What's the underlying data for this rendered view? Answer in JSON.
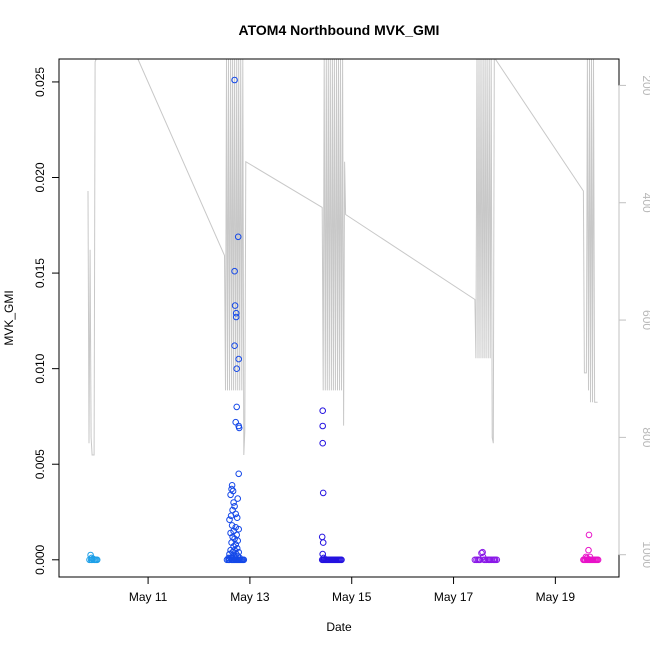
{
  "chart_data": {
    "type": "scatter",
    "title": "ATOM4 Northbound MVK_GMI",
    "xlabel": "Date",
    "ylabel": "MVK_GMI",
    "x_ticks": [
      {
        "label": "May 11",
        "day": 11
      },
      {
        "label": "May 13",
        "day": 13
      },
      {
        "label": "May 15",
        "day": 15
      },
      {
        "label": "May 17",
        "day": 17
      },
      {
        "label": "May 19",
        "day": 19
      }
    ],
    "xlim_days": [
      9.25,
      20.25
    ],
    "ylim": [
      -0.0009,
      0.0262
    ],
    "y_ticks": [
      {
        "label": "0.000",
        "v": 0.0
      },
      {
        "label": "0.005",
        "v": 0.005
      },
      {
        "label": "0.010",
        "v": 0.01
      },
      {
        "label": "0.015",
        "v": 0.015
      },
      {
        "label": "0.020",
        "v": 0.02
      },
      {
        "label": "0.025",
        "v": 0.025
      }
    ],
    "right_axis": {
      "color": "#c0c0c0",
      "reversed": true,
      "ylim": [
        1038,
        155
      ],
      "ticks": [
        {
          "label": "200",
          "v": 200
        },
        {
          "label": "400",
          "v": 400
        },
        {
          "label": "600",
          "v": 600
        },
        {
          "label": "800",
          "v": 800
        },
        {
          "label": "1000",
          "v": 1000
        }
      ]
    },
    "series": [
      {
        "color": "#1ea0e8",
        "points": [
          [
            9.85,
            0.0
          ],
          [
            9.87,
            0.00025
          ],
          [
            9.89,
            0.0001
          ],
          [
            9.9,
            0.0
          ],
          [
            9.92,
            5e-05
          ],
          [
            9.94,
            0.0
          ],
          [
            9.96,
            0.0
          ],
          [
            9.98,
            0.0
          ],
          [
            10.0,
            0.0
          ],
          [
            9.88,
            0.0
          ]
        ]
      },
      {
        "color": "#1448e8",
        "points": [
          [
            12.55,
            0.0
          ],
          [
            12.58,
            0.0
          ],
          [
            12.6,
            0.0
          ],
          [
            12.62,
            0.0001
          ],
          [
            12.64,
            0.0
          ],
          [
            12.66,
            0.0
          ],
          [
            12.68,
            0.0
          ],
          [
            12.7,
            0.0
          ],
          [
            12.72,
            0.0
          ],
          [
            12.74,
            0.0
          ],
          [
            12.76,
            0.0
          ],
          [
            12.78,
            0.0
          ],
          [
            12.8,
            0.0
          ],
          [
            12.82,
            0.0
          ],
          [
            12.84,
            0.0
          ],
          [
            12.86,
            0.0
          ],
          [
            12.88,
            0.0
          ],
          [
            12.7,
            0.0251
          ],
          [
            12.77,
            0.0169
          ],
          [
            12.7,
            0.0151
          ],
          [
            12.71,
            0.0133
          ],
          [
            12.73,
            0.0129
          ],
          [
            12.73,
            0.0127
          ],
          [
            12.7,
            0.0112
          ],
          [
            12.78,
            0.0105
          ],
          [
            12.74,
            0.01
          ],
          [
            12.74,
            0.008
          ],
          [
            12.72,
            0.0072
          ],
          [
            12.78,
            0.007
          ],
          [
            12.79,
            0.0069
          ],
          [
            12.78,
            0.0045
          ],
          [
            12.65,
            0.0039
          ],
          [
            12.64,
            0.0037
          ],
          [
            12.67,
            0.0036
          ],
          [
            12.62,
            0.0034
          ],
          [
            12.76,
            0.0032
          ],
          [
            12.68,
            0.003
          ],
          [
            12.7,
            0.0028
          ],
          [
            12.66,
            0.0026
          ],
          [
            12.72,
            0.0024
          ],
          [
            12.63,
            0.0023
          ],
          [
            12.75,
            0.0022
          ],
          [
            12.6,
            0.0021
          ],
          [
            12.65,
            0.0018
          ],
          [
            12.72,
            0.0017
          ],
          [
            12.78,
            0.0016
          ],
          [
            12.68,
            0.0015
          ],
          [
            12.62,
            0.0014
          ],
          [
            12.74,
            0.0013
          ],
          [
            12.66,
            0.0012
          ],
          [
            12.7,
            0.0011
          ],
          [
            12.76,
            0.001
          ],
          [
            12.64,
            0.0009
          ],
          [
            12.72,
            0.0008
          ],
          [
            12.68,
            0.0007
          ],
          [
            12.75,
            0.0006
          ],
          [
            12.62,
            0.0005
          ],
          [
            12.7,
            0.0005
          ],
          [
            12.78,
            0.0004
          ],
          [
            12.66,
            0.0004
          ],
          [
            12.73,
            0.0003
          ],
          [
            12.6,
            0.0003
          ],
          [
            12.76,
            0.0002
          ],
          [
            12.68,
            0.0002
          ],
          [
            12.64,
            0.0001
          ],
          [
            12.8,
            0.0001
          ],
          [
            12.72,
            0.0001
          ],
          [
            12.58,
            0.0001
          ]
        ]
      },
      {
        "color": "#2412e0",
        "points": [
          [
            14.42,
            0.0
          ],
          [
            14.44,
            0.0
          ],
          [
            14.46,
            0.0
          ],
          [
            14.48,
            0.0
          ],
          [
            14.5,
            0.0
          ],
          [
            14.52,
            0.0
          ],
          [
            14.54,
            0.0
          ],
          [
            14.56,
            0.0
          ],
          [
            14.58,
            0.0
          ],
          [
            14.6,
            0.0
          ],
          [
            14.62,
            0.0
          ],
          [
            14.64,
            0.0
          ],
          [
            14.66,
            0.0
          ],
          [
            14.68,
            0.0
          ],
          [
            14.7,
            0.0
          ],
          [
            14.72,
            0.0
          ],
          [
            14.74,
            0.0
          ],
          [
            14.76,
            0.0
          ],
          [
            14.78,
            0.0
          ],
          [
            14.8,
            0.0
          ],
          [
            14.43,
            0.0078
          ],
          [
            14.43,
            0.007
          ],
          [
            14.43,
            0.0061
          ],
          [
            14.44,
            0.0035
          ],
          [
            14.42,
            0.0012
          ],
          [
            14.44,
            0.0009
          ],
          [
            14.43,
            0.0003
          ],
          [
            14.45,
            0.0001
          ]
        ]
      },
      {
        "color": "#8a18e8",
        "points": [
          [
            17.42,
            0.0
          ],
          [
            17.45,
            0.0
          ],
          [
            17.48,
            0.0
          ],
          [
            17.5,
            0.0
          ],
          [
            17.52,
            0.0
          ],
          [
            17.55,
            0.00035
          ],
          [
            17.57,
            0.0004
          ],
          [
            17.58,
            0.00015
          ],
          [
            17.6,
            0.0
          ],
          [
            17.62,
            0.0
          ],
          [
            17.65,
            0.0
          ],
          [
            17.68,
            0.0
          ],
          [
            17.7,
            0.0
          ],
          [
            17.72,
            0.0
          ],
          [
            17.75,
            0.0
          ],
          [
            17.78,
            0.0
          ],
          [
            17.8,
            0.0
          ],
          [
            17.82,
            0.0
          ],
          [
            17.85,
            0.0
          ]
        ]
      },
      {
        "color": "#e812c8",
        "points": [
          [
            19.55,
            0.0
          ],
          [
            19.57,
            0.0
          ],
          [
            19.59,
            0.0
          ],
          [
            19.6,
            0.00015
          ],
          [
            19.62,
            0.0
          ],
          [
            19.64,
            0.0
          ],
          [
            19.66,
            0.0
          ],
          [
            19.68,
            0.0
          ],
          [
            19.7,
            0.0
          ],
          [
            19.72,
            0.0
          ],
          [
            19.74,
            0.0
          ],
          [
            19.76,
            0.0
          ],
          [
            19.78,
            0.0
          ],
          [
            19.8,
            0.0
          ],
          [
            19.82,
            0.0
          ],
          [
            19.84,
            0.0
          ],
          [
            19.66,
            0.0013
          ],
          [
            19.65,
            0.0005
          ],
          [
            19.68,
            0.00015
          ],
          [
            19.62,
            0.0001
          ]
        ]
      }
    ],
    "altitude_line": {
      "color": "#c8c8c8",
      "points": [
        [
          9.82,
          380
        ],
        [
          9.84,
          810
        ],
        [
          9.86,
          480
        ],
        [
          9.88,
          800
        ],
        [
          9.9,
          830
        ],
        [
          9.92,
          830
        ],
        [
          9.94,
          830
        ],
        [
          9.96,
          160
        ],
        [
          9.98,
          155
        ],
        [
          10.0,
          155
        ],
        [
          10.8,
          155
        ],
        [
          12.5,
          490
        ],
        [
          12.52,
          720
        ],
        [
          12.54,
          155
        ],
        [
          12.56,
          720
        ],
        [
          12.58,
          155
        ],
        [
          12.6,
          720
        ],
        [
          12.62,
          155
        ],
        [
          12.64,
          720
        ],
        [
          12.66,
          155
        ],
        [
          12.68,
          720
        ],
        [
          12.7,
          155
        ],
        [
          12.72,
          720
        ],
        [
          12.74,
          155
        ],
        [
          12.76,
          720
        ],
        [
          12.78,
          155
        ],
        [
          12.8,
          720
        ],
        [
          12.82,
          155
        ],
        [
          12.84,
          720
        ],
        [
          12.86,
          155
        ],
        [
          12.88,
          830
        ],
        [
          12.9,
          790
        ],
        [
          12.92,
          330
        ],
        [
          14.42,
          408
        ],
        [
          14.44,
          720
        ],
        [
          14.46,
          155
        ],
        [
          14.48,
          720
        ],
        [
          14.5,
          155
        ],
        [
          14.52,
          720
        ],
        [
          14.54,
          155
        ],
        [
          14.56,
          720
        ],
        [
          14.58,
          155
        ],
        [
          14.6,
          720
        ],
        [
          14.62,
          155
        ],
        [
          14.64,
          720
        ],
        [
          14.66,
          155
        ],
        [
          14.68,
          720
        ],
        [
          14.7,
          155
        ],
        [
          14.72,
          720
        ],
        [
          14.74,
          155
        ],
        [
          14.76,
          720
        ],
        [
          14.78,
          155
        ],
        [
          14.8,
          720
        ],
        [
          14.82,
          155
        ],
        [
          14.84,
          780
        ],
        [
          14.86,
          330
        ],
        [
          14.88,
          420
        ],
        [
          17.42,
          565
        ],
        [
          17.44,
          665
        ],
        [
          17.46,
          155
        ],
        [
          17.48,
          665
        ],
        [
          17.5,
          155
        ],
        [
          17.52,
          665
        ],
        [
          17.54,
          155
        ],
        [
          17.56,
          665
        ],
        [
          17.58,
          155
        ],
        [
          17.6,
          665
        ],
        [
          17.62,
          155
        ],
        [
          17.64,
          665
        ],
        [
          17.66,
          155
        ],
        [
          17.68,
          665
        ],
        [
          17.7,
          155
        ],
        [
          17.72,
          665
        ],
        [
          17.74,
          155
        ],
        [
          17.76,
          800
        ],
        [
          17.78,
          810
        ],
        [
          17.8,
          155
        ],
        [
          17.82,
          155
        ],
        [
          19.55,
          380
        ],
        [
          19.57,
          690
        ],
        [
          19.59,
          690
        ],
        [
          19.61,
          690
        ],
        [
          19.63,
          155
        ],
        [
          19.65,
          720
        ],
        [
          19.67,
          155
        ],
        [
          19.69,
          740
        ],
        [
          19.71,
          155
        ],
        [
          19.73,
          740
        ],
        [
          19.75,
          155
        ],
        [
          19.77,
          740
        ],
        [
          19.79,
          740
        ],
        [
          19.81,
          740
        ],
        [
          19.83,
          740
        ]
      ]
    }
  }
}
